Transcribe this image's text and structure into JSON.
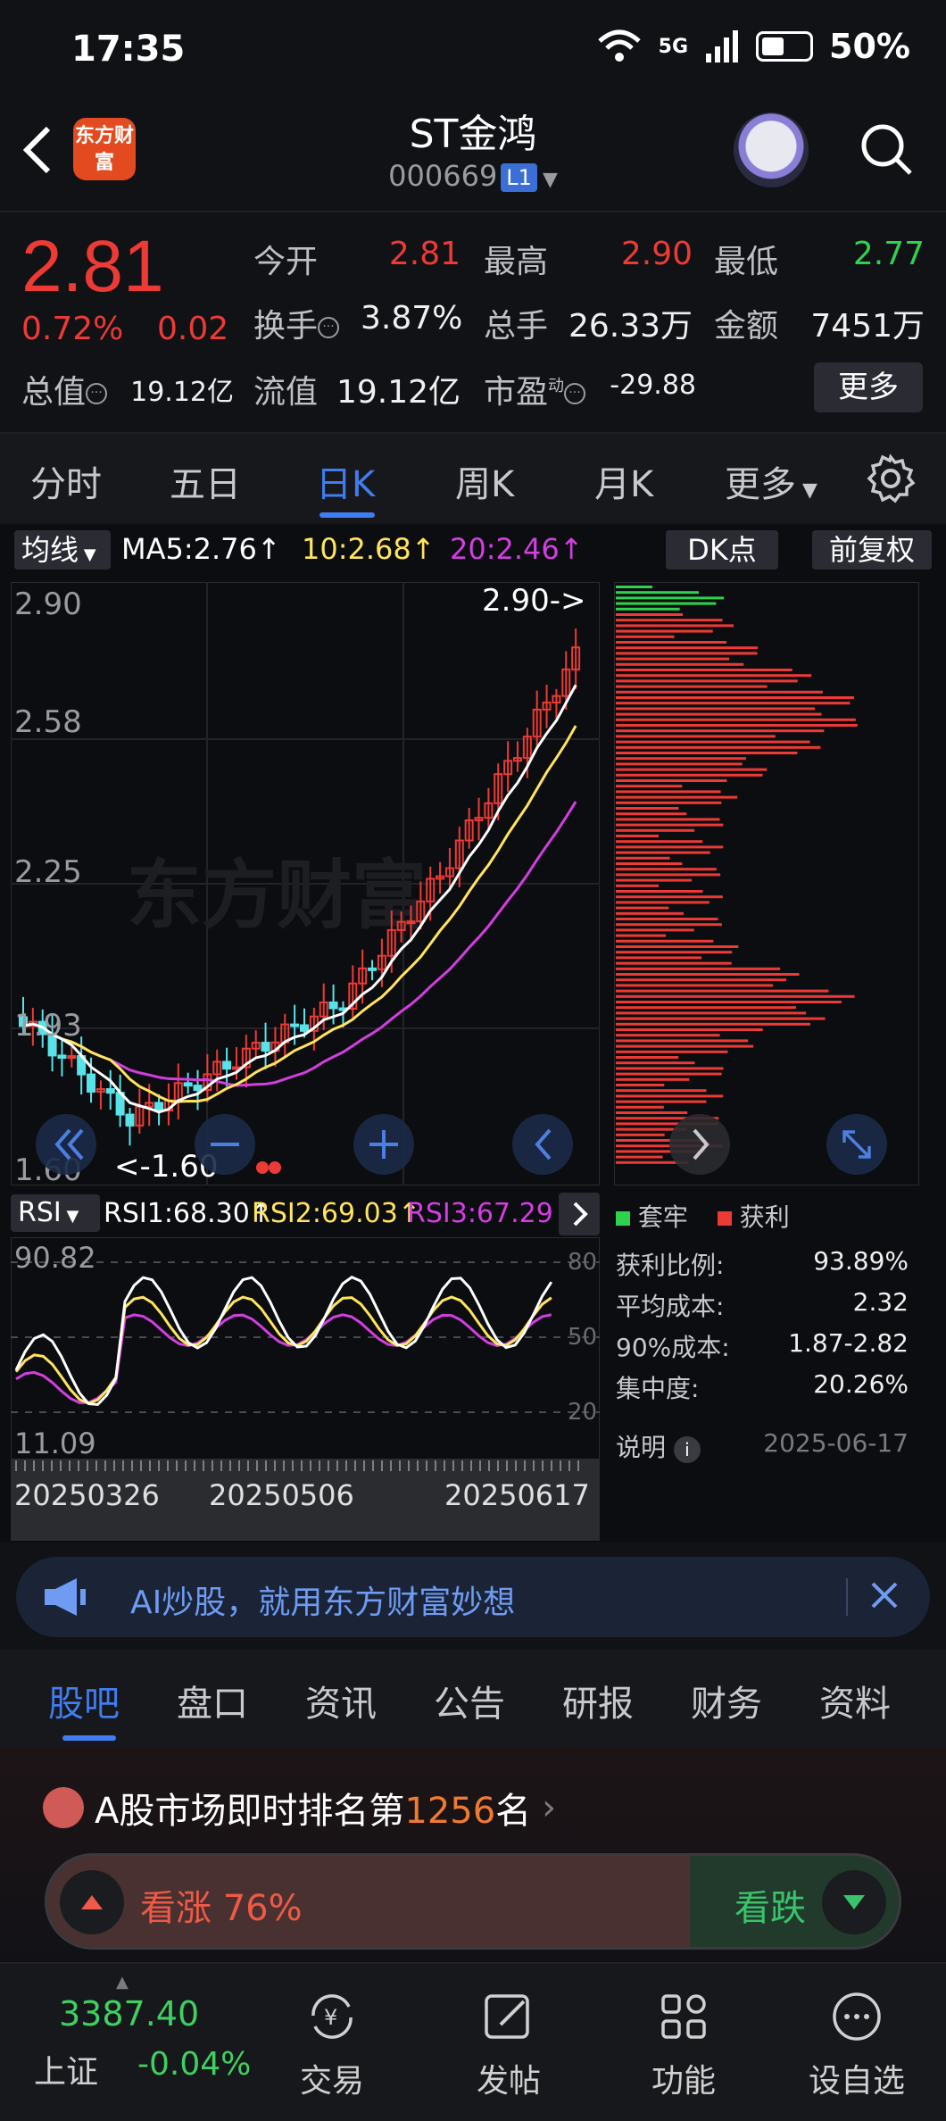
{
  "status_bar": {
    "time": "17:35",
    "network": "5G",
    "battery": "50%"
  },
  "header": {
    "logo_text": "东方财富",
    "stock_name": "ST金鸿",
    "stock_code": "000669",
    "level_badge": "L1"
  },
  "quote": {
    "price": "2.81",
    "change_pct": "0.72%",
    "change": "0.02",
    "open_label": "今开",
    "open": "2.81",
    "high_label": "最高",
    "high": "2.90",
    "low_label": "最低",
    "low": "2.77",
    "turnover_label": "换手",
    "turnover": "3.87%",
    "volume_label": "总手",
    "volume": "26.33万",
    "amount_label": "金额",
    "amount": "7451万",
    "mktcap_label": "总值",
    "mktcap": "19.12亿",
    "float_label": "流值",
    "float_cap": "19.12亿",
    "pe_label": "市盈",
    "pe_sup": "动",
    "pe": "-29.88",
    "more_label": "更多"
  },
  "period_tabs": [
    "分时",
    "五日",
    "日K",
    "周K",
    "月K",
    "更多"
  ],
  "ma_bar": {
    "selector": "均线",
    "ma5": "MA5:2.76↑",
    "ma10": "10:2.68↑",
    "ma20": "20:2.46↑",
    "dk_label": "DK点",
    "adjust_label": "前复权"
  },
  "kline": {
    "y_labels": [
      "2.90",
      "2.58",
      "2.25",
      "1.93",
      "1.60"
    ],
    "max_marker": "2.90->",
    "min_marker": "<-1.60",
    "watermark": "东方财富"
  },
  "rsi": {
    "selector": "RSI",
    "rsi1": "RSI1:68.30↑",
    "rsi2": "RSI2:69.03↑",
    "rsi3": "RSI3:67.29↑",
    "y_top": "90.82",
    "y_bottom": "11.09",
    "ref_80": "80",
    "ref_50": "50",
    "ref_20": "20",
    "dates": [
      "20250326",
      "20250506",
      "20250617"
    ]
  },
  "chip": {
    "legend_trapped": "套牢",
    "legend_profit": "获利",
    "rows": [
      {
        "label": "获利比例:",
        "value": "93.89%"
      },
      {
        "label": "平均成本:",
        "value": "2.32"
      },
      {
        "label": "90%成本:",
        "value": "1.87-2.82"
      },
      {
        "label": "集中度:",
        "value": "20.26%"
      }
    ],
    "note_label": "说明",
    "date": "2025-06-17"
  },
  "ai_banner": {
    "text": "AI炒股，就用东方财富妙想"
  },
  "sub_tabs": [
    "股吧",
    "盘口",
    "资讯",
    "公告",
    "研报",
    "财务",
    "资料"
  ],
  "rank": {
    "prefix": "A股市场即时排名第",
    "number": "1256",
    "suffix": "名"
  },
  "vote": {
    "up_label": "看涨 76%",
    "down_label": "看跌"
  },
  "bottom_nav": {
    "index_value": "3387.40",
    "index_name": "上证",
    "index_change": "-0.04%",
    "items": [
      "交易",
      "发帖",
      "功能",
      "设自选"
    ]
  },
  "colors": {
    "up": "#ee3a35",
    "down": "#2fd24e",
    "accent": "#3f7df0",
    "ma5": "#ffffff",
    "ma10": "#ffe45c",
    "ma20": "#d23ee0"
  }
}
